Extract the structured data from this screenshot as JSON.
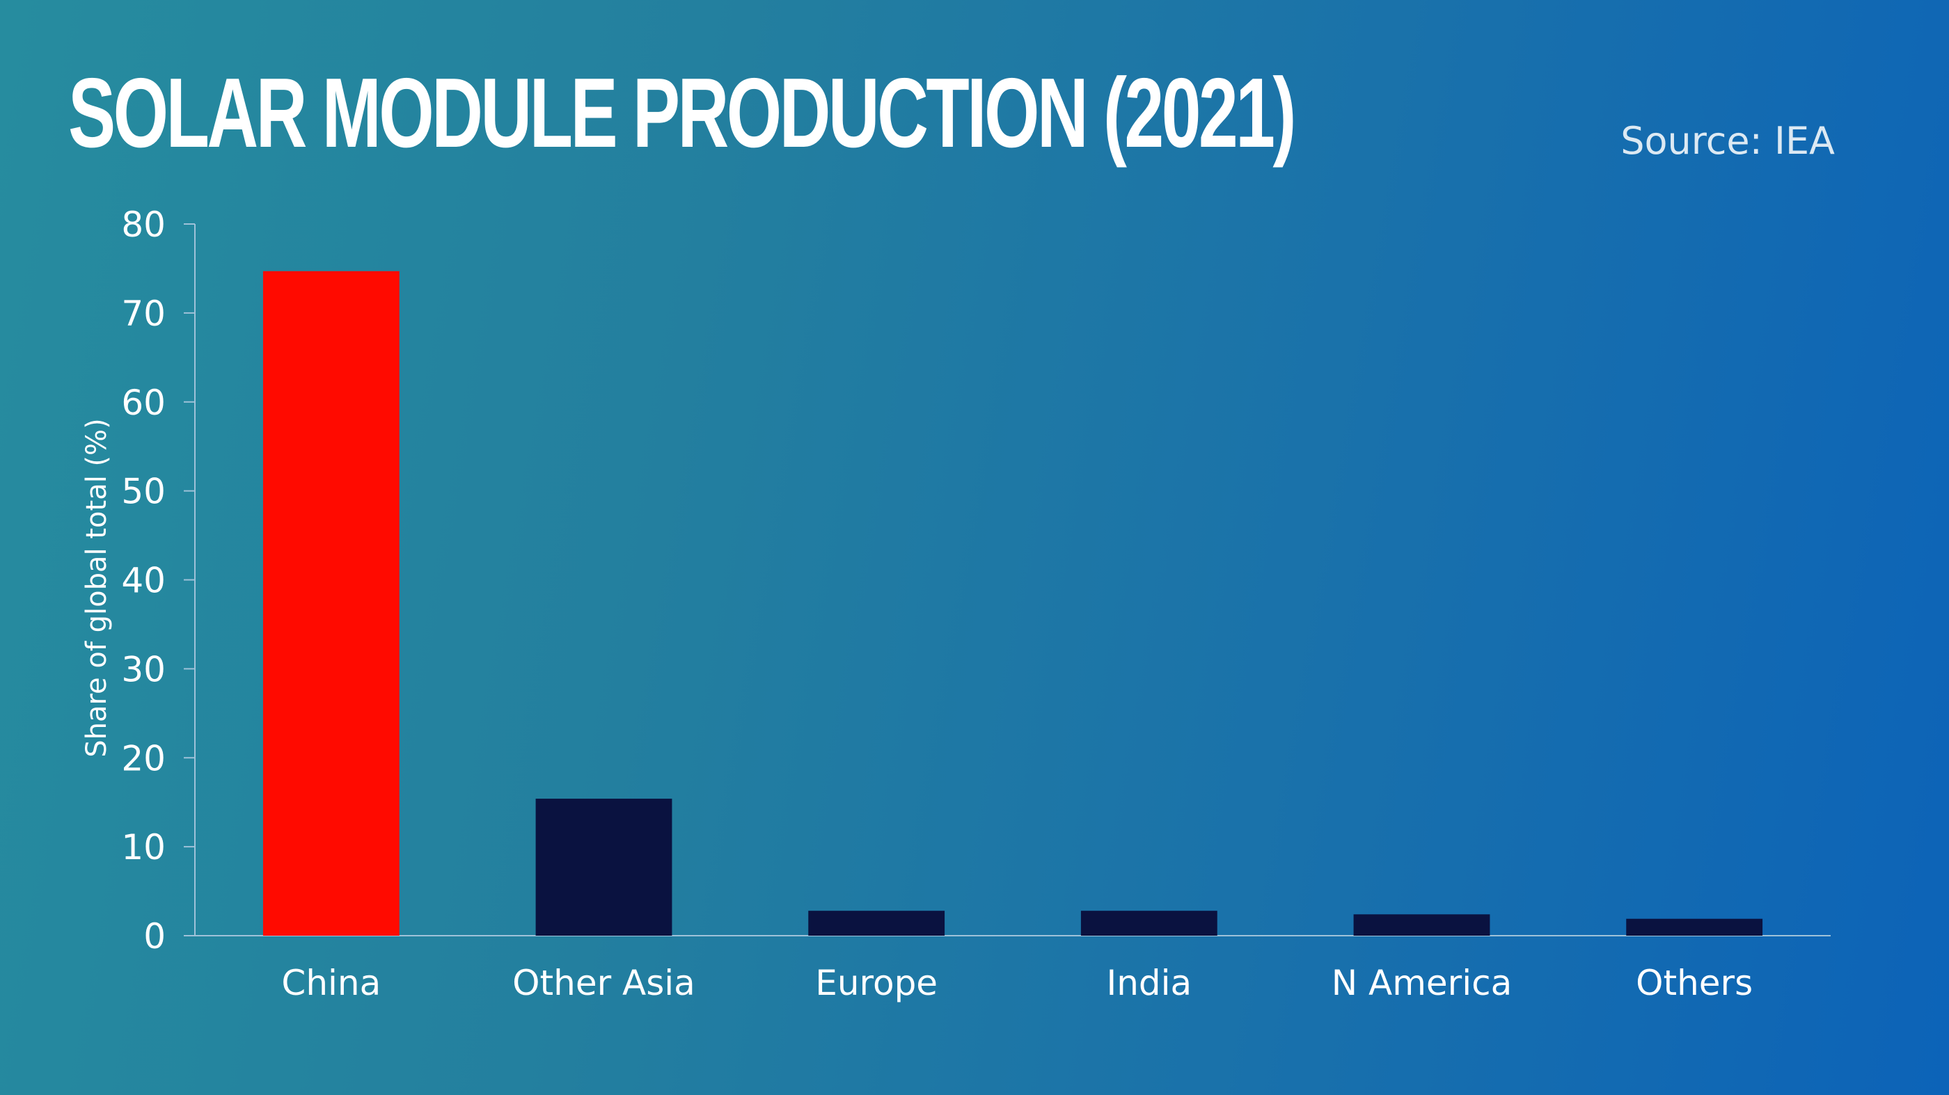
{
  "chart_data": {
    "type": "bar",
    "title": "SOLAR MODULE PRODUCTION (2021)",
    "source": "Source: IEA",
    "xlabel": "",
    "ylabel": "Share of global total (%)",
    "categories": [
      "China",
      "Other Asia",
      "Europe",
      "India",
      "N America",
      "Others"
    ],
    "values": [
      74.7,
      15.4,
      2.8,
      2.8,
      2.4,
      1.9
    ],
    "highlight_index": 0,
    "ylim": [
      0,
      80
    ],
    "yticks": [
      0,
      10,
      20,
      30,
      40,
      50,
      60,
      70,
      80
    ],
    "grid": false,
    "legend": "none",
    "colors": {
      "highlight": "#ff0a00",
      "bar": "#0a1240",
      "axis": "#9fc2d9",
      "text": "#ffffff"
    }
  }
}
